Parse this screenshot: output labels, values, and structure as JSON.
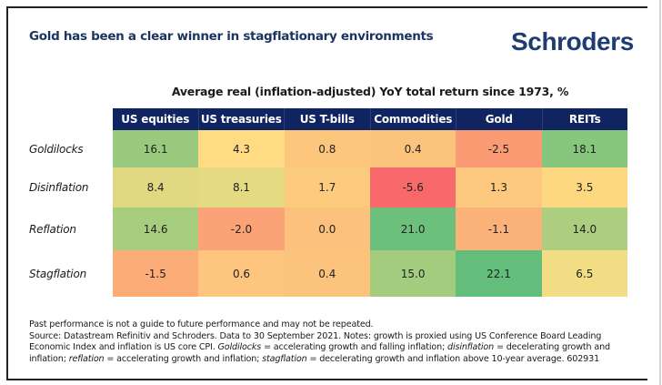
{
  "header": {
    "title": "Gold has been a clear winner in stagflationary environments",
    "logo": "Schroders"
  },
  "colors": {
    "title": "#1c3560",
    "header_bg": "#0f2460",
    "logo": "#1f3c72"
  },
  "chart_data": {
    "type": "heatmap",
    "title": "Average real (inflation-adjusted) YoY total return since 1973, %",
    "columns": [
      "US equities",
      "US treasuries",
      "US T-bills",
      "Commodities",
      "Gold",
      "REITs"
    ],
    "rows": [
      "Goldilocks",
      "Disinflation",
      "Reflation",
      "Stagflation"
    ],
    "values": [
      [
        16.1,
        4.3,
        0.8,
        0.4,
        -2.5,
        18.1
      ],
      [
        8.4,
        8.1,
        1.7,
        -5.6,
        1.3,
        3.5
      ],
      [
        14.6,
        -2.0,
        0.0,
        21.0,
        -1.1,
        14.0
      ],
      [
        -1.5,
        0.6,
        0.4,
        15.0,
        22.1,
        6.5
      ]
    ],
    "value_labels": [
      [
        "16.1",
        "4.3",
        "0.8",
        "0.4",
        "-2.5",
        "18.1"
      ],
      [
        "8.4",
        "8.1",
        "1.7",
        "-5.6",
        "1.3",
        "3.5"
      ],
      [
        "14.6",
        "-2.0",
        "0.0",
        "21.0",
        "-1.1",
        "14.0"
      ],
      [
        "-1.5",
        "0.6",
        "0.4",
        "15.0",
        "22.1",
        "6.5"
      ]
    ],
    "color_scale": {
      "low": "#f8696b",
      "mid": "#ffd27f",
      "high": "#63be7b"
    }
  },
  "notes": {
    "line1": "Past performance is not a guide to future performance and may not be repeated.",
    "line2": "Source: Datastream Refinitiv and Schroders. Data to 30 September 2021. Notes: growth is proxied using US Conference Board Leading",
    "line3_a": "Economic Index and inflation is US core CPI. ",
    "line3_b": "Goldilocks",
    "line3_c": " = accelerating growth and falling inflation; ",
    "line3_d": "disinflation",
    "line3_e": " = decelerating growth and",
    "line4_a": "inflation; ",
    "line4_b": "reflation",
    "line4_c": " = accelerating growth and inflation; ",
    "line4_d": "stagflation",
    "line4_e": " = decelerating growth and inflation above 10-year average. 602931"
  }
}
